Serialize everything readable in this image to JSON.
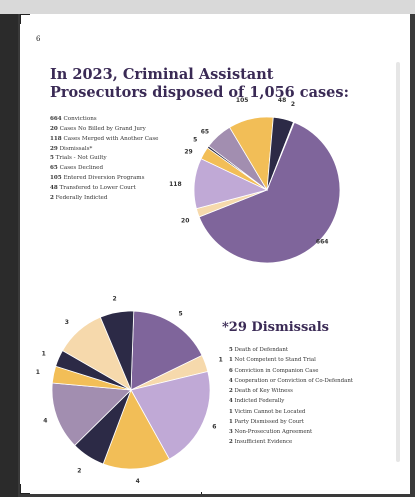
{
  "page": {
    "number": "6"
  },
  "headline": "In 2023, Criminal Assistant Prosecutors disposed of 1,056 cases:",
  "dismissals_title": "*29 Dismissals",
  "colors": {
    "purple": "#7f659b",
    "lavender": "#c0a9d6",
    "gold": "#f2be57",
    "cream": "#f6d9ac",
    "navy": "#2c2a46",
    "mauve": "#a28eb0"
  },
  "chart_data": [
    {
      "type": "pie",
      "title": "",
      "slices": [
        {
          "label": "Convictions",
          "value": 664,
          "color": "#7f659b"
        },
        {
          "label": "Cases No Billed by Grand Jury",
          "value": 20,
          "color": "#f6d9ac"
        },
        {
          "label": "Cases Merged with Another Case",
          "value": 118,
          "color": "#c0a9d6"
        },
        {
          "label": "Dismissals*",
          "value": 29,
          "color": "#f2be57"
        },
        {
          "label": "Trials - Not Guilty",
          "value": 5,
          "color": "#2c2a46"
        },
        {
          "label": "Cases Declined",
          "value": 65,
          "color": "#a28eb0"
        },
        {
          "label": "Entered Diversion Programs",
          "value": 105,
          "color": "#f2be57"
        },
        {
          "label": "Transfered to Lower Court",
          "value": 48,
          "color": "#2c2a46"
        },
        {
          "label": "Federally Indicted",
          "value": 2,
          "color": "#7f659b"
        }
      ],
      "data_labels": [
        "664",
        "20",
        "118",
        "29",
        "5",
        "65",
        "105",
        "48",
        "2"
      ]
    },
    {
      "type": "pie",
      "title": "",
      "slices": [
        {
          "label": "Death of Defendant",
          "value": 5,
          "color": "#7f659b"
        },
        {
          "label": "Not Competent to Stand Trial",
          "value": 1,
          "color": "#f6d9ac"
        },
        {
          "label": "Conviction in Companion Case",
          "value": 6,
          "color": "#c0a9d6"
        },
        {
          "label": "Cooperation or Conviction of Co-Defendant",
          "value": 4,
          "color": "#f2be57"
        },
        {
          "label": "Death of Key Witness",
          "value": 2,
          "color": "#2c2a46"
        },
        {
          "label": "Indicted Federally",
          "value": 4,
          "color": "#a28eb0"
        },
        {
          "label": "Victim Cannot be Located",
          "value": 1,
          "color": "#f2be57"
        },
        {
          "label": "Party Dismissed by Court",
          "value": 1,
          "color": "#2c2a46"
        },
        {
          "label": "Non-Prosecution Agreement",
          "value": 3,
          "color": "#f6d9ac"
        },
        {
          "label": "Insufficient Evidence",
          "value": 2,
          "color": "#2c2a46"
        }
      ],
      "data_labels": [
        "5",
        "1",
        "6",
        "4",
        "2",
        "4",
        "1",
        "1",
        "3",
        "2"
      ]
    }
  ]
}
